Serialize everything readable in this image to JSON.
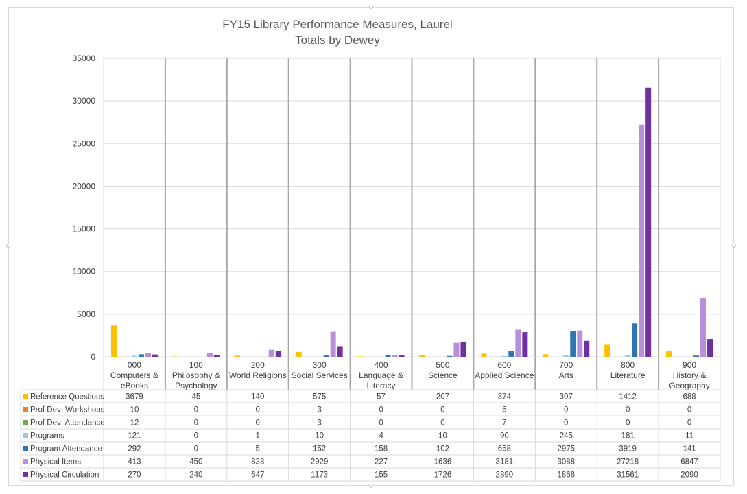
{
  "chart_data": {
    "type": "bar",
    "title": "FY15 Library Performance Measures, Laurel",
    "subtitle": "Totals by Dewey",
    "ylim": [
      0,
      35000
    ],
    "yticks": [
      0,
      5000,
      10000,
      15000,
      20000,
      25000,
      30000,
      35000
    ],
    "grid": true,
    "legend_placement": "data-table-left",
    "categories": [
      [
        "000",
        "Computers &",
        "eBooks"
      ],
      [
        "100",
        "Philosophy &",
        "Psychology"
      ],
      [
        "200",
        "World Religions"
      ],
      [
        "300",
        "Social Services"
      ],
      [
        "400",
        "Language &",
        "Literacy"
      ],
      [
        "500",
        "Science"
      ],
      [
        "600",
        "Applied Science"
      ],
      [
        "700",
        "Arts"
      ],
      [
        "800",
        "Literature"
      ],
      [
        "900",
        "History &",
        "Geography"
      ]
    ],
    "series": [
      {
        "name": "Reference Questions",
        "color": "#FFC000",
        "values": [
          3679,
          45,
          140,
          575,
          57,
          207,
          374,
          307,
          1412,
          688
        ]
      },
      {
        "name": "Prof Dev: Workshops",
        "color": "#ED7D31",
        "values": [
          10,
          0,
          0,
          3,
          0,
          0,
          5,
          0,
          0,
          0
        ]
      },
      {
        "name": "Prof Dev: Attendance",
        "color": "#70AD47",
        "values": [
          12,
          0,
          0,
          3,
          0,
          0,
          7,
          0,
          0,
          0
        ]
      },
      {
        "name": "Programs",
        "color": "#9DC3E6",
        "values": [
          121,
          0,
          1,
          10,
          4,
          10,
          90,
          245,
          181,
          11
        ]
      },
      {
        "name": "Program Attendance",
        "color": "#2E75B6",
        "values": [
          292,
          0,
          5,
          152,
          158,
          102,
          658,
          2975,
          3919,
          141
        ]
      },
      {
        "name": "Physical Items",
        "color": "#B88FDB",
        "values": [
          413,
          450,
          828,
          2929,
          227,
          1636,
          3181,
          3088,
          27218,
          6847
        ]
      },
      {
        "name": "Physical Circulation",
        "color": "#7030A0",
        "values": [
          270,
          240,
          647,
          1173,
          155,
          1726,
          2890,
          1868,
          31561,
          2090
        ]
      }
    ]
  }
}
